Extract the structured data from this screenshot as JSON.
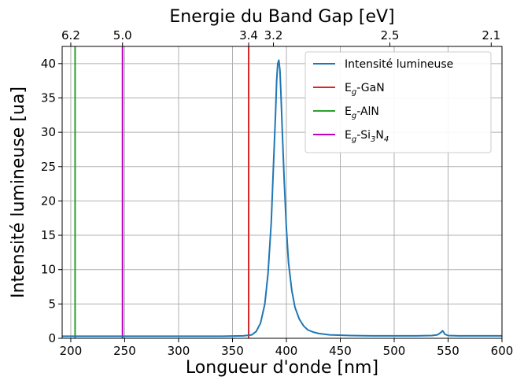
{
  "chart_data": {
    "type": "line",
    "title": "Energie du Band Gap [eV]",
    "xlabel": "Longueur d'onde [nm]",
    "ylabel": "Intensité lumineuse [ua]",
    "xlim": [
      192,
      600
    ],
    "ylim": [
      0,
      42.5
    ],
    "grid": true,
    "x_ticks": [
      200,
      250,
      300,
      350,
      400,
      450,
      500,
      550,
      600
    ],
    "y_ticks": [
      0,
      5,
      10,
      15,
      20,
      25,
      30,
      35,
      40
    ],
    "top_axis": {
      "label": "Energie du Band Gap [eV]",
      "ticks": [
        {
          "label": "6.2",
          "wavelength": 200
        },
        {
          "label": "5.0",
          "wavelength": 248
        },
        {
          "label": "3.4",
          "wavelength": 365
        },
        {
          "label": "3.2",
          "wavelength": 388
        },
        {
          "label": "2.5",
          "wavelength": 496
        },
        {
          "label": "2.1",
          "wavelength": 590
        }
      ]
    },
    "legend": {
      "position": "top-right",
      "entries": [
        {
          "main": "Intensité lumineuse",
          "color": "#1f77b4"
        },
        {
          "main": "E",
          "sub": "g",
          "rest": "-GaN",
          "color": "#d62728"
        },
        {
          "main": "E",
          "sub": "g",
          "rest": "-AlN",
          "color": "#2ca02c"
        },
        {
          "main": "E",
          "sub": "g",
          "rest": "-Si",
          "sub2": "3",
          "rest2": "N",
          "sub3": "4",
          "color": "#bf00bf"
        }
      ]
    },
    "series": [
      {
        "name": "Intensité lumineuse",
        "color": "#1f77b4",
        "x": [
          192,
          220,
          250,
          280,
          310,
          340,
          360,
          368,
          372,
          376,
          380,
          383,
          386,
          388,
          390,
          391,
          392,
          393,
          394,
          395,
          396,
          398,
          400,
          402,
          405,
          408,
          412,
          416,
          420,
          425,
          430,
          440,
          460,
          480,
          500,
          520,
          535,
          540,
          543,
          545,
          547,
          550,
          560,
          580,
          600
        ],
        "y": [
          0.3,
          0.3,
          0.3,
          0.3,
          0.3,
          0.3,
          0.35,
          0.5,
          1.0,
          2.2,
          5.0,
          9.5,
          17.0,
          25.0,
          33.0,
          37.5,
          40.0,
          40.5,
          39.0,
          35.5,
          31.0,
          23.0,
          16.0,
          11.0,
          7.0,
          4.5,
          2.8,
          1.8,
          1.2,
          0.9,
          0.7,
          0.5,
          0.4,
          0.35,
          0.35,
          0.35,
          0.4,
          0.5,
          0.8,
          1.1,
          0.6,
          0.4,
          0.35,
          0.35,
          0.35
        ]
      },
      {
        "name": "Eg-GaN",
        "color": "#d62728",
        "vline": 365
      },
      {
        "name": "Eg-AlN",
        "color": "#2ca02c",
        "vline": 204
      },
      {
        "name": "Eg-Si3N4",
        "color": "#bf00bf",
        "vline": 248
      }
    ]
  }
}
